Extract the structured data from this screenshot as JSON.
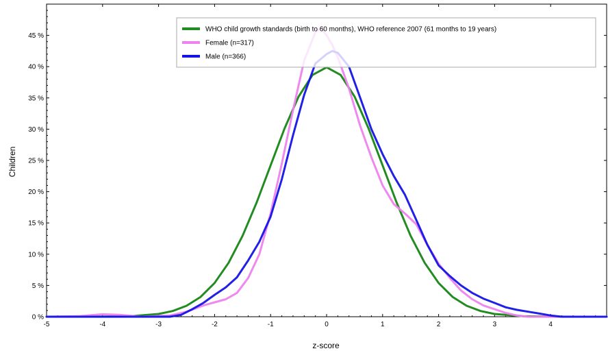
{
  "chart_data": {
    "type": "line",
    "title": "",
    "xlabel": "z-score",
    "ylabel": "Children",
    "xlim": [
      -5,
      5
    ],
    "ylim": [
      0,
      50
    ],
    "x_ticks": [
      -5,
      -4,
      -3,
      -2,
      -1,
      0,
      1,
      2,
      3,
      4
    ],
    "x_tick_labels": [
      "-5",
      "-4",
      "-3",
      "-2",
      "-1",
      "0",
      "1",
      "2",
      "3",
      "4"
    ],
    "y_ticks": [
      0,
      5,
      10,
      15,
      20,
      25,
      30,
      35,
      40,
      45
    ],
    "y_tick_labels": [
      "0 %",
      "5 %",
      "10 %",
      "15 %",
      "20 %",
      "25 %",
      "30 %",
      "35 %",
      "40 %",
      "45 %"
    ],
    "grid": false,
    "legend_position": "top-right",
    "series": [
      {
        "name": "WHO child growth standards (birth to 60 months), WHO reference 2007 (61 months to 19 years)",
        "color": "#228B22",
        "x": [
          -5,
          -4.5,
          -4,
          -3.5,
          -3,
          -2.75,
          -2.5,
          -2.25,
          -2,
          -1.75,
          -1.5,
          -1.25,
          -1,
          -0.75,
          -0.5,
          -0.25,
          0,
          0.25,
          0.5,
          0.75,
          1,
          1.25,
          1.5,
          1.75,
          2,
          2.25,
          2.5,
          2.75,
          3,
          3.5,
          4,
          4.5,
          5
        ],
        "values": [
          0,
          0,
          0.01,
          0.09,
          0.44,
          0.91,
          1.75,
          3.17,
          5.4,
          8.63,
          12.95,
          18.26,
          24.2,
          30.11,
          35.21,
          38.67,
          39.89,
          38.67,
          35.21,
          30.11,
          24.2,
          18.26,
          12.95,
          8.63,
          5.4,
          3.17,
          1.75,
          0.91,
          0.44,
          0.09,
          0.01,
          0,
          0
        ]
      },
      {
        "name": "Female (n=317)",
        "color": "#EE82EE",
        "x": [
          -5,
          -4.4,
          -4.0,
          -3.7,
          -3.3,
          -2.8,
          -2.5,
          -2.2,
          -2.0,
          -1.8,
          -1.6,
          -1.4,
          -1.2,
          -1.0,
          -0.8,
          -0.6,
          -0.4,
          -0.2,
          -0.1,
          0.0,
          0.1,
          0.2,
          0.4,
          0.6,
          0.8,
          1.0,
          1.2,
          1.4,
          1.6,
          1.8,
          2.0,
          2.2,
          2.4,
          2.6,
          2.8,
          3.0,
          3.2,
          3.4,
          3.6,
          3.8,
          4.0,
          4.5,
          5.0
        ],
        "values": [
          0,
          0.1,
          0.4,
          0.3,
          0.0,
          0.2,
          0.8,
          1.8,
          2.3,
          2.8,
          3.8,
          6.2,
          10.0,
          16.5,
          24.5,
          33.0,
          41.0,
          45.5,
          46.2,
          45.0,
          43.5,
          41.5,
          36.5,
          30.5,
          25.5,
          21.0,
          18.0,
          16.5,
          14.8,
          11.5,
          8.5,
          6.2,
          4.2,
          2.8,
          1.8,
          1.2,
          0.6,
          0.2,
          0.0,
          0,
          0,
          0,
          0
        ]
      },
      {
        "name": "Male (n=366)",
        "color": "#1414E6",
        "x": [
          -5,
          -4.0,
          -3.0,
          -2.8,
          -2.6,
          -2.4,
          -2.2,
          -2.0,
          -1.8,
          -1.6,
          -1.4,
          -1.2,
          -1.0,
          -0.8,
          -0.6,
          -0.4,
          -0.2,
          0.0,
          0.1,
          0.2,
          0.4,
          0.6,
          0.8,
          1.0,
          1.2,
          1.4,
          1.6,
          1.8,
          2.0,
          2.2,
          2.4,
          2.6,
          2.8,
          3.0,
          3.2,
          3.4,
          3.6,
          3.8,
          4.0,
          4.2,
          4.5,
          5.0
        ],
        "values": [
          0,
          0,
          0,
          0,
          0.3,
          1.2,
          2.2,
          3.5,
          4.7,
          6.3,
          9.0,
          12.0,
          16.0,
          22.0,
          29.0,
          35.5,
          40.5,
          42.0,
          42.5,
          42.2,
          40.0,
          35.0,
          30.0,
          26.0,
          22.5,
          19.5,
          15.5,
          11.5,
          8.2,
          6.5,
          5.0,
          3.8,
          2.9,
          2.2,
          1.5,
          1.1,
          0.8,
          0.5,
          0.2,
          0,
          0,
          0
        ]
      }
    ]
  }
}
